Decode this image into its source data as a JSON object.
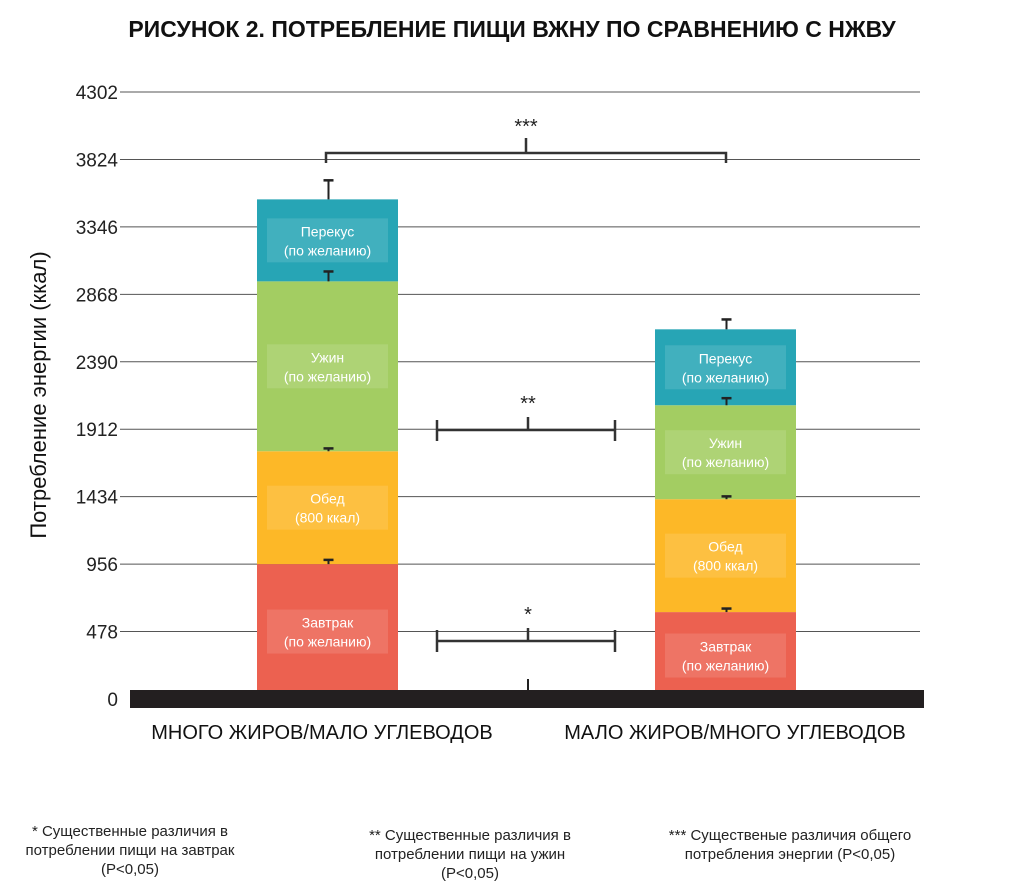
{
  "chart_data": {
    "type": "bar",
    "stacked": true,
    "title": "РИСУНОК 2. ПОТРЕБЛЕНИЕ ПИЩИ ВЖНУ ПО СРАВНЕНИЮ С НЖВУ",
    "ylabel": "Потребление энергии (ккал)",
    "xlabel": "",
    "ylim": [
      0,
      4302
    ],
    "yticks": [
      0,
      478,
      956,
      1434,
      1912,
      2390,
      2868,
      3346,
      3824,
      4302
    ],
    "grid": true,
    "categories": [
      "МНОГО ЖИРОВ/МАЛО УГЛЕВОДОВ",
      "МАЛО ЖИРОВ/МНОГО УГЛЕВОДОВ"
    ],
    "series": [
      {
        "name": "Завтрак",
        "label": [
          "Завтрак",
          "(по желанию)"
        ],
        "color": "#ec6150",
        "values": [
          956,
          616
        ],
        "errors": [
          30,
          25
        ]
      },
      {
        "name": "Обед",
        "label": [
          "Обед",
          "(800 ккал)"
        ],
        "color": "#fdb827",
        "values": [
          800,
          800
        ],
        "errors": [
          20,
          20
        ]
      },
      {
        "name": "Ужин",
        "label": [
          "Ужин",
          "(по желанию)"
        ],
        "color": "#a3cd62",
        "values": [
          1204,
          666
        ],
        "errors": [
          70,
          50
        ]
      },
      {
        "name": "Перекус",
        "label": [
          "Перекус",
          "(по желанию)"
        ],
        "color": "#27a5b5",
        "values": [
          581,
          538
        ],
        "errors": [
          135,
          70
        ]
      }
    ],
    "annotations": [
      {
        "text": "***",
        "between": "total"
      },
      {
        "text": "**",
        "between": "Ужин"
      },
      {
        "text": "*",
        "between": "Завтрак"
      }
    ]
  },
  "notes": [
    [
      "* Существенные различия в",
      "потреблении пищи на завтрак",
      "(P<0,05)"
    ],
    [
      "** Существенные различия в",
      "потреблении пищи на ужин",
      "(P<0,05)"
    ],
    [
      "*** Существеные различия общего",
      "потребления энергии (P<0,05)"
    ]
  ]
}
